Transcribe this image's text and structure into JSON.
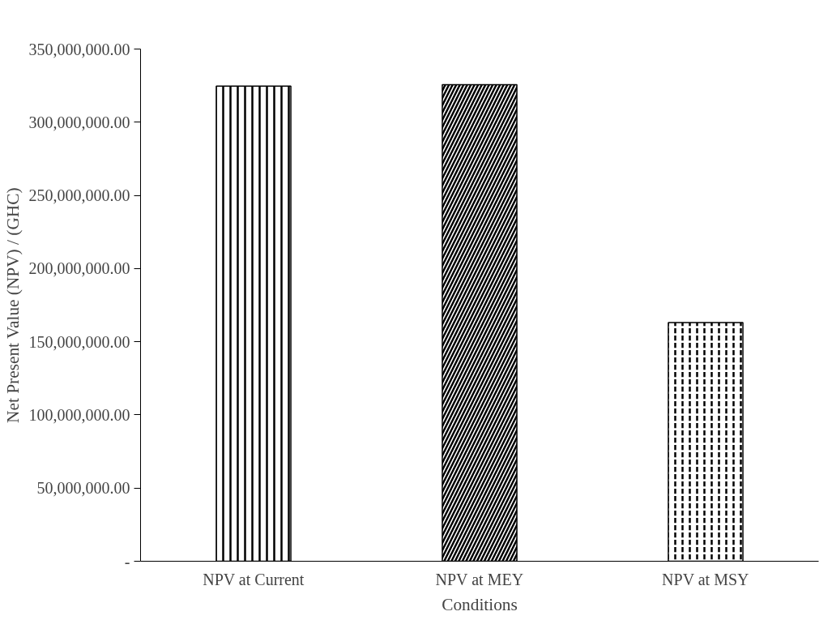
{
  "chart_data": {
    "type": "bar",
    "xlabel": "Conditions",
    "ylabel": "Net Present Value (NPV) / (GHC)",
    "categories": [
      "NPV at Current",
      "NPV at MEY",
      "NPV at MSY"
    ],
    "values": [
      324600000,
      325700000,
      163100000
    ],
    "colors": [
      "#000000",
      "#000000",
      "#000000"
    ],
    "ylim": [
      0,
      350000000
    ],
    "yticks": [
      {
        "value": 0,
        "label": "-"
      },
      {
        "value": 50000000,
        "label": "50,000,000.00"
      },
      {
        "value": 100000000,
        "label": "100,000,000.00"
      },
      {
        "value": 150000000,
        "label": "150,000,000.00"
      },
      {
        "value": 200000000,
        "label": "200,000,000.00"
      },
      {
        "value": 250000000,
        "label": "250,000,000.00"
      },
      {
        "value": 300000000,
        "label": "300,000,000.00"
      },
      {
        "value": 350000000,
        "label": "350,000,000.00"
      }
    ],
    "grid": false
  }
}
